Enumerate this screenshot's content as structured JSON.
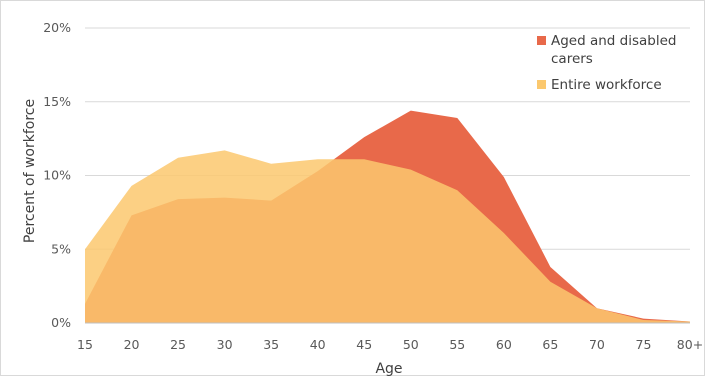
{
  "chart_data": {
    "type": "area",
    "title": "",
    "xlabel": "Age",
    "ylabel": "Percent of workforce",
    "categories": [
      "15",
      "20",
      "25",
      "30",
      "35",
      "40",
      "45",
      "50",
      "55",
      "60",
      "65",
      "70",
      "75",
      "80+"
    ],
    "ylim": [
      0,
      20
    ],
    "yticks": [
      "0%",
      "5%",
      "10%",
      "15%",
      "20%"
    ],
    "grid": true,
    "legend_position": "top-right",
    "series": [
      {
        "name": "Aged and disabled carers",
        "color": "#E8694A",
        "values": [
          1.3,
          7.3,
          8.4,
          8.5,
          8.3,
          10.3,
          12.6,
          14.4,
          13.9,
          9.9,
          3.8,
          1.0,
          0.3,
          0.1
        ]
      },
      {
        "name": "Entire workforce",
        "color": "#FBC86E",
        "values": [
          5.0,
          9.3,
          11.2,
          11.7,
          10.8,
          11.1,
          11.1,
          10.4,
          9.0,
          6.1,
          2.8,
          1.0,
          0.2,
          0.1
        ]
      }
    ]
  }
}
